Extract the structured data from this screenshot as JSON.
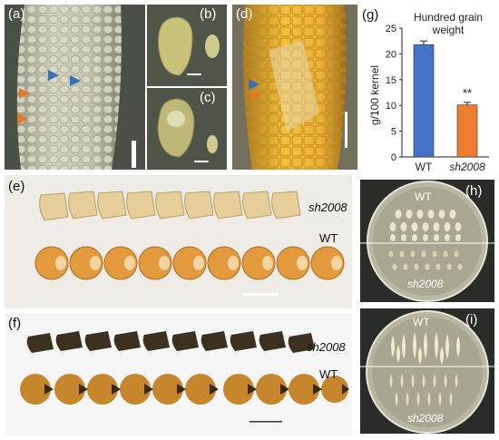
{
  "panels": {
    "a": {
      "label": "(a)"
    },
    "b": {
      "label": "(b)"
    },
    "c": {
      "label": "(c)"
    },
    "d": {
      "label": "(d)"
    },
    "e": {
      "label": "(e)",
      "row_top": "sh2008",
      "row_bottom": "WT"
    },
    "f": {
      "label": "(f)",
      "row_top": "sh2008",
      "row_bottom": "WT"
    },
    "g": {
      "label": "(g)"
    },
    "h": {
      "label": "(h)",
      "top_text": "WT",
      "bottom_text": "sh2008"
    },
    "i": {
      "label": "(i)",
      "top_text": "WT",
      "bottom_text": "sh2008"
    }
  },
  "colors": {
    "arrow_blue": "#3a6fb5",
    "arrow_orange": "#e07a2a",
    "bar_wt": "#4472c4",
    "bar_mut": "#ed7d31"
  },
  "chart_data": {
    "type": "bar",
    "title": "Hundred grain weight",
    "categories": [
      "WT",
      "sh2008"
    ],
    "values": [
      21.8,
      10.1
    ],
    "errors": [
      0.7,
      0.5
    ],
    "ylabel": "g/100 kernel",
    "ylim": [
      0,
      25
    ],
    "yticks": [
      "0",
      "5",
      "10",
      "15",
      "20",
      "25"
    ],
    "significance": [
      {
        "category": "sh2008",
        "text": "**"
      }
    ],
    "grid": false,
    "colors": [
      "#4472c4",
      "#ed7d31"
    ]
  }
}
